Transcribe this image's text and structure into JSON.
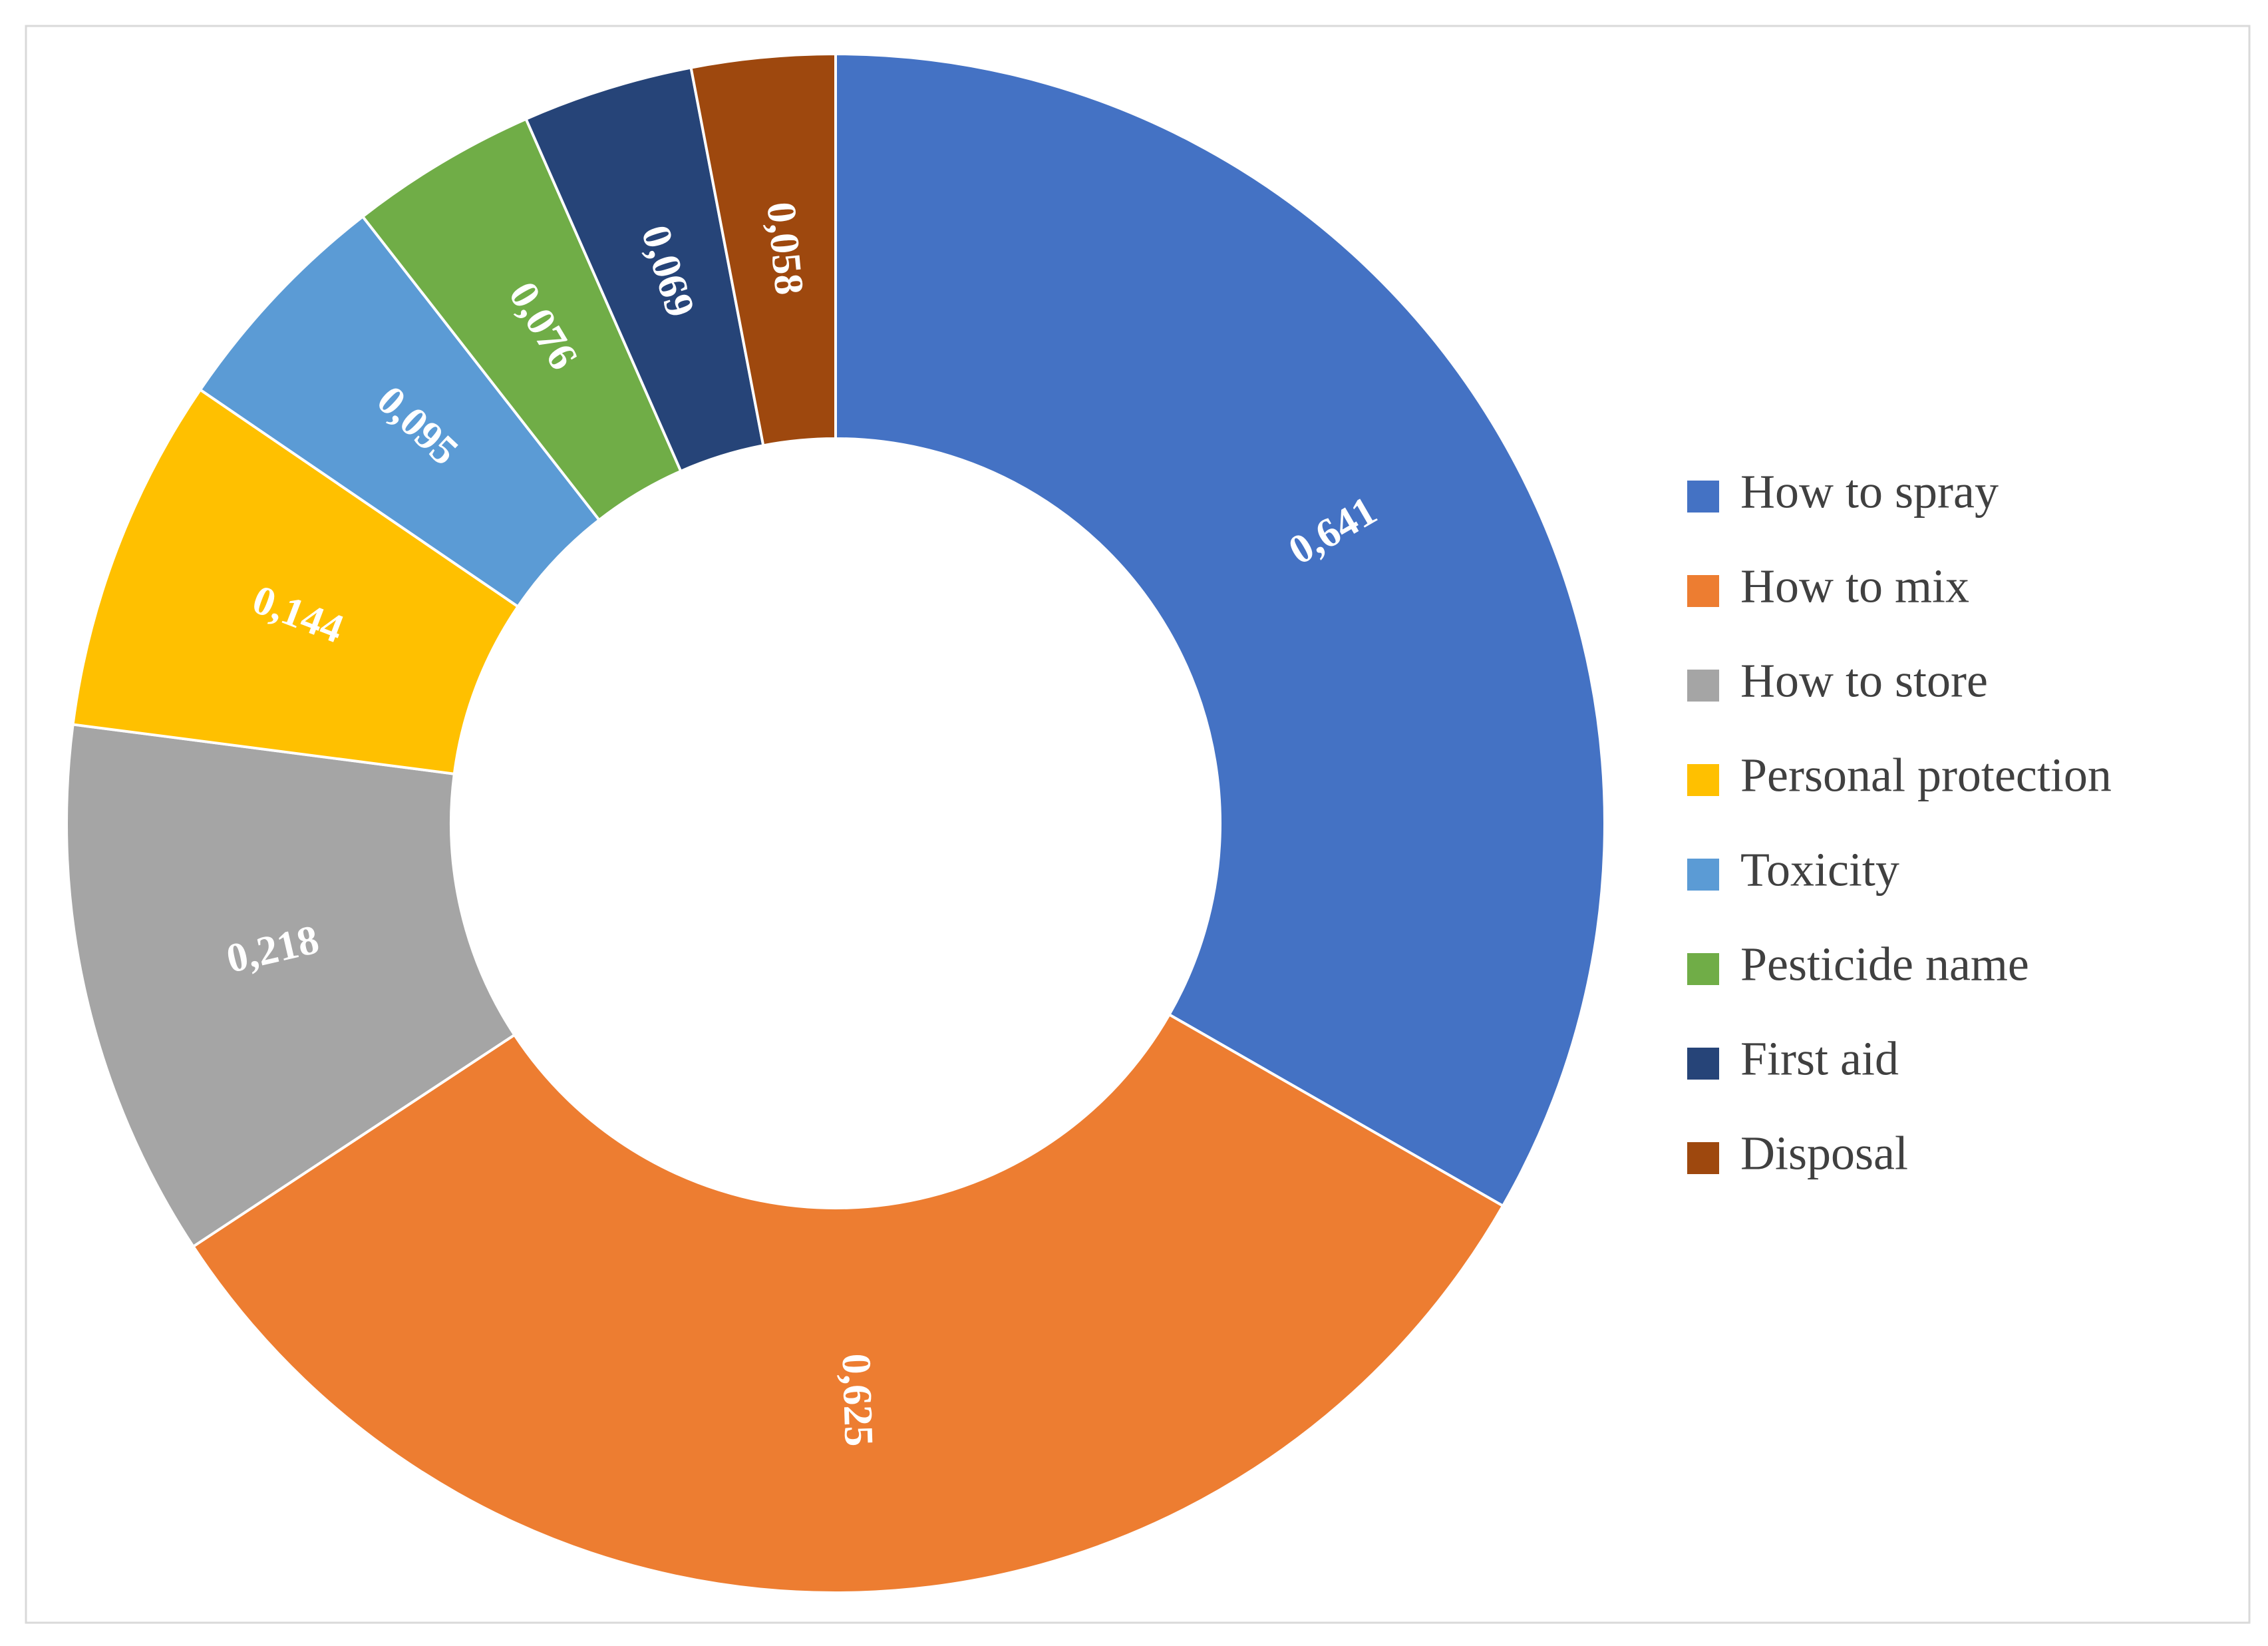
{
  "chart_data": {
    "type": "donut",
    "categories": [
      "How to spray",
      "How to mix",
      "How to store",
      "Personal protection",
      "Toxicity",
      "Pesticide name",
      "First aid",
      "Disposal"
    ],
    "values": [
      0.641,
      0.625,
      0.218,
      0.144,
      0.095,
      0.076,
      0.069,
      0.058
    ],
    "value_labels": [
      "0,641",
      "0,625",
      "0,218",
      "0,144",
      "0,095",
      "0,076",
      "0,069",
      "0,058"
    ],
    "colors": [
      "#4472c4",
      "#ed7d31",
      "#a5a5a5",
      "#ffc000",
      "#5b9bd5",
      "#70ad47",
      "#264478",
      "#9e480e"
    ],
    "legend": "right"
  }
}
